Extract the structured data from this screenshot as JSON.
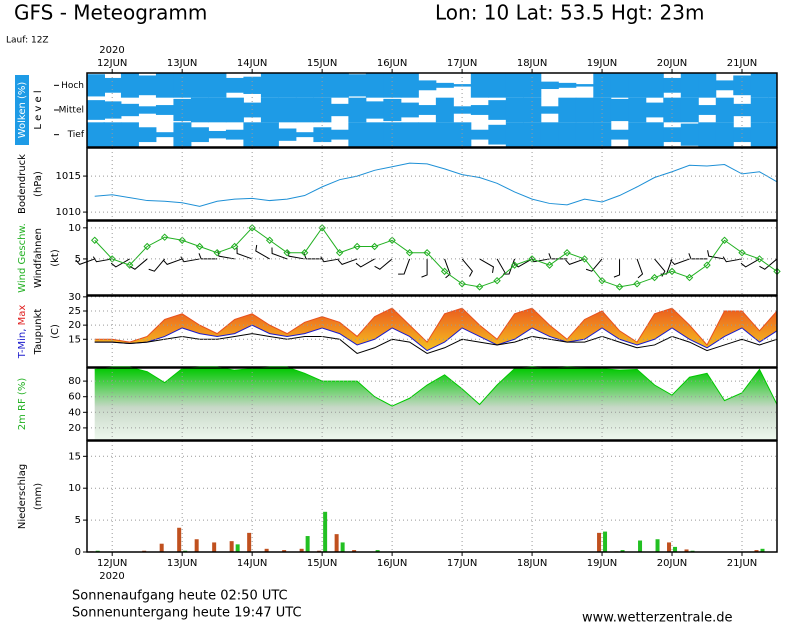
{
  "header": {
    "title": "GFS - Meteogramm",
    "location": "Lon: 10 Lat: 53.5 Hgt: 23m",
    "run": "Lauf: 12Z"
  },
  "x_axis": {
    "year": "2020",
    "xlim": [
      -0.36,
      9.5
    ],
    "xticks": [
      {
        "value": 0,
        "label": "12JUN"
      },
      {
        "value": 1,
        "label": "13JUN"
      },
      {
        "value": 2,
        "label": "14JUN"
      },
      {
        "value": 3,
        "label": "15JUN"
      },
      {
        "value": 4,
        "label": "16JUN"
      },
      {
        "value": 5,
        "label": "17JUN"
      },
      {
        "value": 6,
        "label": "18JUN"
      },
      {
        "value": 7,
        "label": "19JUN"
      },
      {
        "value": 8,
        "label": "20JUN"
      },
      {
        "value": 9,
        "label": "21JUN"
      }
    ],
    "x": [
      -0.25,
      0,
      0.25,
      0.5,
      0.75,
      1,
      1.25,
      1.5,
      1.75,
      2,
      2.25,
      2.5,
      2.75,
      3,
      3.25,
      3.5,
      3.75,
      4,
      4.25,
      4.5,
      4.75,
      5,
      5.25,
      5.5,
      5.75,
      6,
      6.25,
      6.5,
      6.75,
      7,
      7.25,
      7.5,
      7.75,
      8,
      8.25,
      8.5,
      8.75,
      9,
      9.25,
      9.5
    ]
  },
  "chart_data": [
    {
      "type": "cloud",
      "ylabels": [
        [
          {
            "text": "Wolken (%)",
            "color": "#ffffff",
            "box": "#1e9be6"
          }
        ],
        [
          {
            "text": "L e v e l",
            "color": "#000000"
          }
        ]
      ],
      "color": "#1e9be6",
      "series": [
        {
          "name": "Hoch",
          "values": [
            90,
            60,
            100,
            80,
            100,
            100,
            100,
            100,
            60,
            70,
            100,
            100,
            100,
            100,
            100,
            90,
            100,
            100,
            100,
            40,
            20,
            10,
            100,
            100,
            100,
            100,
            30,
            20,
            10,
            100,
            100,
            100,
            100,
            60,
            100,
            100,
            40,
            80,
            100,
            100
          ]
        },
        {
          "name": "Mittel",
          "values": [
            80,
            70,
            50,
            30,
            40,
            90,
            100,
            100,
            100,
            60,
            100,
            100,
            100,
            100,
            50,
            100,
            70,
            90,
            60,
            40,
            100,
            30,
            40,
            80,
            100,
            100,
            30,
            100,
            100,
            100,
            90,
            100,
            60,
            100,
            100,
            40,
            100,
            50,
            100,
            100
          ]
        },
        {
          "name": "Tief",
          "values": [
            100,
            100,
            100,
            60,
            20,
            100,
            60,
            30,
            40,
            100,
            100,
            50,
            20,
            60,
            40,
            100,
            100,
            100,
            100,
            100,
            100,
            100,
            40,
            80,
            100,
            100,
            100,
            100,
            100,
            100,
            40,
            100,
            100,
            60,
            90,
            100,
            100,
            60,
            100,
            100
          ]
        }
      ]
    },
    {
      "type": "line",
      "ylabels": [
        [
          {
            "text": "Bodendruck",
            "color": "#000000"
          }
        ],
        [
          {
            "text": "(hPa)",
            "color": "#000000"
          }
        ]
      ],
      "ylim": [
        1008.9,
        1018.9
      ],
      "yticks": [
        1010,
        1015
      ],
      "series": [
        {
          "color": "#1e90d6",
          "values": [
            1012.2,
            1012.4,
            1012.0,
            1011.6,
            1011.5,
            1011.3,
            1010.8,
            1011.5,
            1011.8,
            1011.9,
            1011.6,
            1011.8,
            1012.3,
            1013.5,
            1014.5,
            1015.0,
            1015.8,
            1016.3,
            1016.8,
            1016.7,
            1016.0,
            1015.2,
            1014.8,
            1014.0,
            1012.8,
            1011.8,
            1011.2,
            1011.0,
            1011.8,
            1011.4,
            1012.3,
            1013.5,
            1014.8,
            1015.6,
            1016.5,
            1016.4,
            1016.6,
            1015.3,
            1015.6,
            1014.2
          ]
        }
      ]
    },
    {
      "type": "wind",
      "ylabels": [
        [
          {
            "text": "Wind Geschw.",
            "color": "#22b022"
          }
        ],
        [
          {
            "text": "Windfahnen",
            "color": "#000000"
          }
        ],
        [
          {
            "text": "(kt)",
            "color": "#000000"
          }
        ]
      ],
      "ylim": [
        -0.8,
        11.1
      ],
      "yticks": [
        5,
        10
      ],
      "series": [
        {
          "color": "#22b022",
          "values": [
            8,
            5,
            4,
            7,
            8.5,
            8,
            7,
            6,
            7,
            10,
            8,
            6,
            6,
            10,
            6,
            7,
            7,
            8,
            6,
            6,
            3,
            1,
            0.5,
            1.5,
            4,
            5,
            4,
            6,
            5,
            1.5,
            0.5,
            1,
            2,
            3,
            2,
            4,
            8,
            6,
            5,
            3
          ]
        }
      ],
      "direction": [
        250,
        260,
        240,
        230,
        220,
        250,
        260,
        270,
        280,
        290,
        300,
        290,
        280,
        270,
        260,
        250,
        240,
        230,
        200,
        180,
        160,
        140,
        120,
        150,
        200,
        240,
        260,
        270,
        250,
        220,
        180,
        160,
        140,
        200,
        250,
        270,
        280,
        260,
        240,
        230
      ]
    },
    {
      "type": "temperature",
      "ylabels": [
        [
          {
            "text": "T-Min, ",
            "color": "#1a1acc"
          },
          {
            "text": "Max",
            "color": "#e02020"
          }
        ],
        [
          {
            "text": "Taupunkt",
            "color": "#000000"
          }
        ],
        [
          {
            "text": "(C)",
            "color": "#000000"
          }
        ]
      ],
      "ylim": [
        5.2,
        30.3
      ],
      "yticks": [
        15,
        20,
        25,
        30
      ],
      "series": [
        {
          "color": "#e8501e",
          "values": [
            15,
            15,
            14,
            16,
            22,
            24,
            20,
            17,
            22,
            24,
            20,
            17,
            21,
            23,
            21,
            16,
            23,
            26,
            20,
            14,
            24,
            26,
            20,
            15,
            24,
            26,
            20,
            15,
            22,
            25,
            18,
            14,
            24,
            26,
            20,
            13,
            25,
            25,
            18,
            25
          ]
        },
        {
          "color": "#1a1acc",
          "values": [
            14,
            14,
            13.5,
            14,
            16,
            19,
            17,
            16,
            17,
            20,
            17,
            16,
            17,
            19,
            17,
            13,
            15,
            19,
            16,
            11,
            14,
            19,
            16,
            13,
            15,
            19,
            16,
            14,
            15,
            19,
            15,
            13,
            15,
            19,
            15,
            12,
            16,
            19,
            14,
            18
          ]
        },
        {
          "color": "#000000",
          "values": [
            14,
            14,
            13.5,
            14,
            15,
            16,
            15,
            15,
            16,
            17,
            16,
            15,
            16,
            16,
            15,
            10,
            12,
            15,
            14,
            10,
            12,
            15,
            14,
            13,
            14,
            16,
            15,
            14,
            14,
            16,
            14,
            12,
            13,
            16,
            14,
            11,
            13,
            15,
            13,
            15
          ]
        }
      ]
    },
    {
      "type": "area",
      "ylabels": [
        [
          {
            "text": "2m RF (%)",
            "color": "#22b022"
          }
        ]
      ],
      "ylim": [
        4.5,
        96.8
      ],
      "yticks": [
        20,
        40,
        60,
        80
      ],
      "color": "#00c800",
      "values": [
        95,
        98,
        98,
        92,
        78,
        96,
        98,
        98,
        94,
        96,
        98,
        98,
        90,
        80,
        80,
        80,
        60,
        48,
        58,
        75,
        88,
        70,
        50,
        75,
        96,
        98,
        96,
        98,
        97,
        96,
        94,
        95,
        75,
        62,
        85,
        90,
        55,
        65,
        95,
        50
      ]
    },
    {
      "type": "bar",
      "ylabels": [
        [
          {
            "text": "Niederschlag",
            "color": "#000000"
          }
        ],
        [
          {
            "text": "(mm)",
            "color": "#000000"
          }
        ]
      ],
      "ylim": [
        0,
        17.4
      ],
      "yticks": [
        0,
        5,
        10,
        15
      ],
      "series": [
        {
          "color": "#c0501e",
          "values": [
            0.1,
            0,
            0,
            0.2,
            1.3,
            3.8,
            2.0,
            1.5,
            1.7,
            3.0,
            0.5,
            0.3,
            0.5,
            0.2,
            2.8,
            0.3,
            0,
            0,
            0,
            0,
            0,
            0,
            0,
            0,
            0,
            0,
            0,
            0,
            0,
            3.0,
            0.1,
            0,
            0,
            1.5,
            0.4,
            0,
            0,
            0,
            0.3,
            0
          ]
        },
        {
          "color": "#22c022",
          "values": [
            0.2,
            0,
            0,
            0,
            0,
            0.2,
            0,
            0,
            1.2,
            0,
            0,
            0,
            2.5,
            6.3,
            1.5,
            0,
            0.3,
            0,
            0,
            0,
            0,
            0,
            0,
            0,
            0,
            0,
            0,
            0,
            0,
            3.2,
            0.3,
            1.8,
            2.0,
            0.8,
            0.2,
            0,
            0,
            0,
            0.5,
            0
          ]
        }
      ]
    }
  ],
  "footer": {
    "sunrise": "Sonnenaufgang heute 02:50 UTC",
    "sunset": "Sonnenuntergang heute 19:47 UTC",
    "source": "www.wetterzentrale.de"
  }
}
